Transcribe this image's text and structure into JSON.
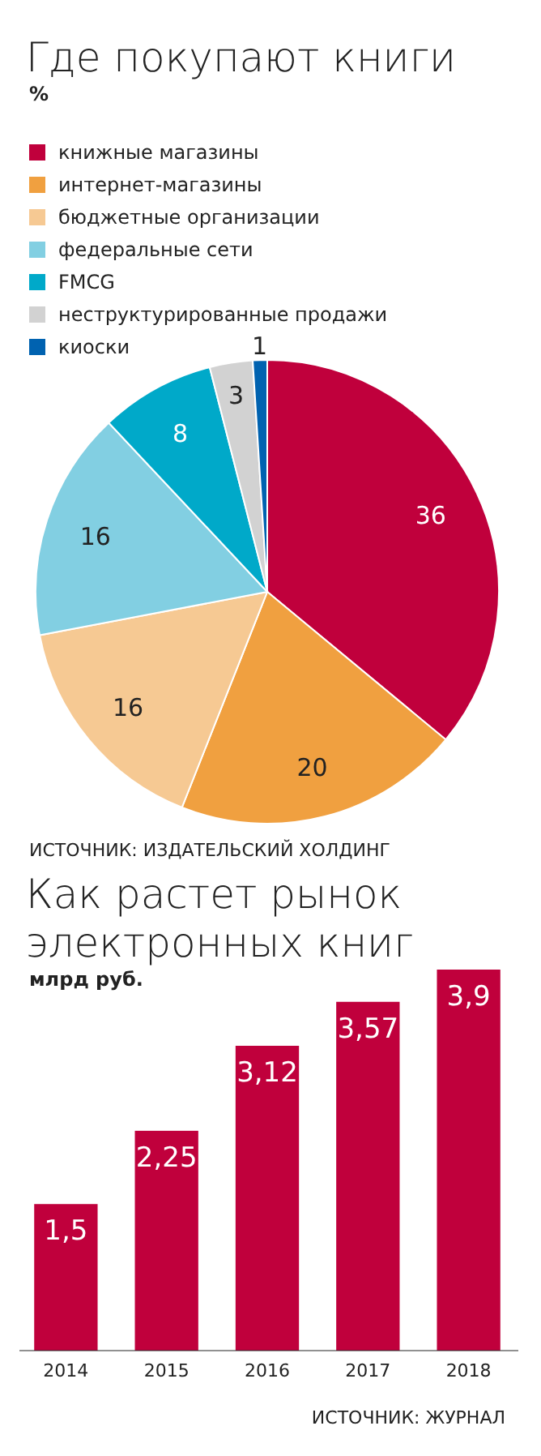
{
  "chart_data": [
    {
      "type": "pie",
      "title": "Где покупают книги",
      "subtitle": "%",
      "categories": [
        "книжные магазины",
        "интернет-магазины",
        "бюджетные организации",
        "федеральные сети",
        "FMCG",
        "неструктурированные продажи",
        "киоски"
      ],
      "values": [
        36,
        20,
        16,
        16,
        8,
        3,
        1
      ],
      "colors": [
        "#c0003c",
        "#f0a040",
        "#f6c993",
        "#82cfe2",
        "#00a9c9",
        "#d2d2d2",
        "#0062b0"
      ],
      "legend": "top left",
      "data_labels": true,
      "annotations": [
        "ИСТОЧНИК: ИЗДАТЕЛЬСКИЙ ХОЛДИНГ"
      ]
    },
    {
      "type": "bar",
      "title": "Как растет рынок электронных книг",
      "subtitle": "млрд руб.",
      "categories": [
        "2014",
        "2015",
        "2016",
        "2017",
        "2018"
      ],
      "values": [
        1.5,
        2.25,
        3.12,
        3.57,
        3.9
      ],
      "value_labels": [
        "1,5",
        "2,25",
        "3,12",
        "3,57",
        "3,9"
      ],
      "color": "#c0003c",
      "ylim": [
        0,
        3.9
      ],
      "annotations": [
        "ИСТОЧНИК: ЖУРНАЛ"
      ]
    }
  ]
}
